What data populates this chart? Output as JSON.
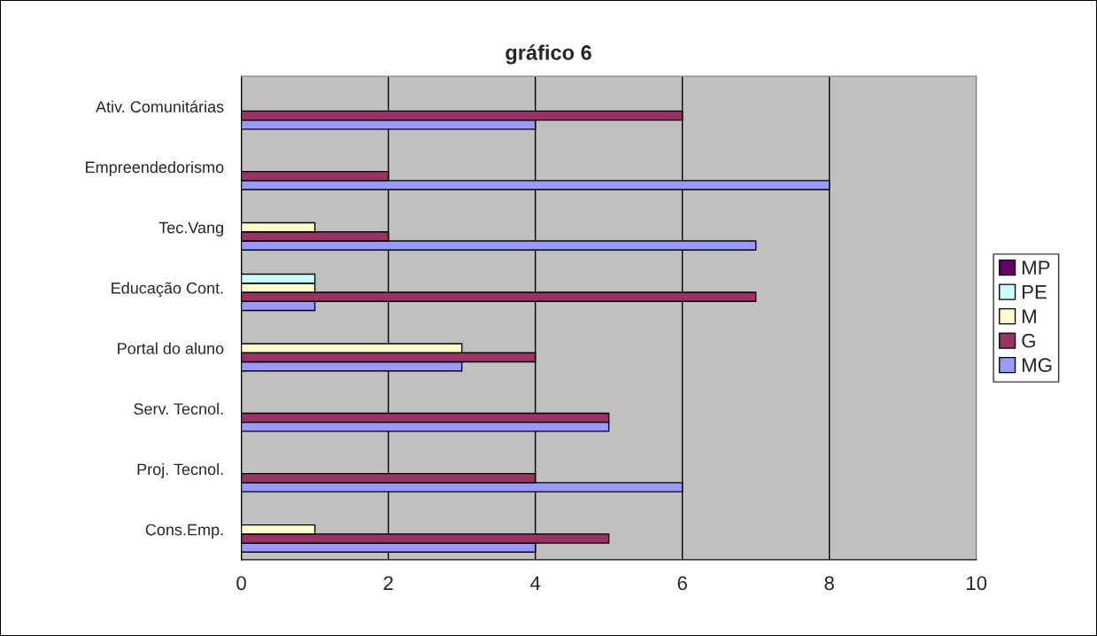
{
  "chart_data": {
    "type": "bar",
    "orientation": "horizontal",
    "title": "gráfico 6",
    "categories": [
      "Ativ. Comunitárias",
      "Empreendedorismo",
      "Tec.Vang",
      "Educação Cont.",
      "Portal do aluno",
      "Serv. Tecnol.",
      "Proj. Tecnol.",
      "Cons.Emp."
    ],
    "series": [
      {
        "name": "MG",
        "color": "#9999ff",
        "values": [
          4,
          8,
          7,
          1,
          3,
          5,
          6,
          4
        ]
      },
      {
        "name": "G",
        "color": "#993366",
        "values": [
          6,
          2,
          2,
          7,
          4,
          5,
          4,
          5
        ]
      },
      {
        "name": "M",
        "color": "#ffffcc",
        "values": [
          null,
          null,
          1,
          1,
          3,
          null,
          null,
          1
        ]
      },
      {
        "name": "PE",
        "color": "#ccffff",
        "values": [
          null,
          null,
          null,
          1,
          null,
          null,
          null,
          null
        ]
      },
      {
        "name": "MP",
        "color": "#660066",
        "values": [
          null,
          null,
          null,
          null,
          null,
          null,
          null,
          null
        ]
      }
    ],
    "xlim": [
      0,
      10
    ],
    "xticks": [
      0,
      2,
      4,
      6,
      8,
      10
    ],
    "grid": "x",
    "legend": "right"
  }
}
